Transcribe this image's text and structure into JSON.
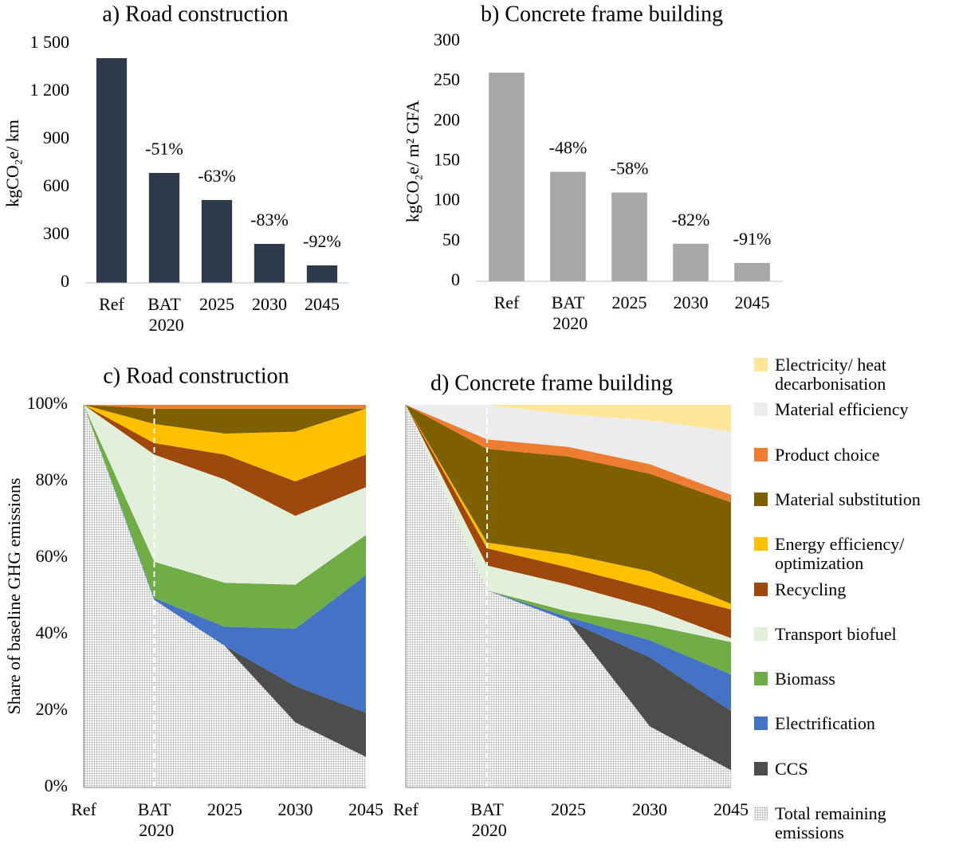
{
  "chart_data": [
    {
      "type": "bar",
      "title": "a) Road construction",
      "y_label": "kgCO₂e/ km",
      "categories": [
        "Ref",
        "BAT 2020",
        "2025",
        "2030",
        "2045"
      ],
      "values": [
        1410,
        690,
        520,
        245,
        110
      ],
      "color": "#2e3a4c",
      "change_labels": [
        null,
        "-51%",
        "-63%",
        "-83%",
        "-92%"
      ],
      "ylim": [
        0,
        1500
      ],
      "yticks": [
        0,
        300,
        600,
        900,
        {
          "value": 1200,
          "label": "1 200"
        },
        {
          "value": 1500,
          "label": "1 500"
        }
      ]
    },
    {
      "type": "bar",
      "title": "b) Concrete frame building",
      "y_label": "kgCO₂e/ m² GFA",
      "categories": [
        "Ref",
        "BAT 2020",
        "2025",
        "2030",
        "2045"
      ],
      "values": [
        261,
        137,
        111,
        47,
        23
      ],
      "color": "#a9a7a6",
      "change_labels": [
        null,
        "-48%",
        "-58%",
        "-82%",
        "-91%"
      ],
      "ylim": [
        0,
        300
      ],
      "yticks": [
        0,
        50,
        100,
        150,
        200,
        250,
        300
      ]
    },
    {
      "type": "stacked_area",
      "title": "c) Road construction",
      "y_label": "Share of baseline GHG emissions",
      "categories": [
        "Ref",
        "BAT 2020",
        "2025",
        "2030",
        "2045"
      ],
      "ylim": [
        0,
        100
      ],
      "yticks": [
        {
          "value": 0,
          "label": "0%"
        },
        {
          "value": 20,
          "label": "20%"
        },
        {
          "value": 40,
          "label": "40%"
        },
        {
          "value": 60,
          "label": "60%"
        },
        {
          "value": 80,
          "label": "80%"
        },
        {
          "value": 100,
          "label": "100%"
        }
      ],
      "series": [
        {
          "name": "Total remaining emissions",
          "color": "#a6a6a6",
          "pattern": "dots",
          "values": [
            100,
            49,
            37,
            17,
            8
          ]
        },
        {
          "name": "CCS",
          "color": "#4d4d4d",
          "values": [
            0,
            0,
            0,
            9.5,
            11.5
          ]
        },
        {
          "name": "Electrification",
          "color": "#4472c4",
          "values": [
            0,
            0.5,
            5,
            15,
            36
          ]
        },
        {
          "name": "Biomass",
          "color": "#70ad47",
          "values": [
            0,
            9.5,
            11.5,
            11.5,
            10.5
          ]
        },
        {
          "name": "Transport biofuel",
          "color": "#e2efda",
          "values": [
            0,
            28,
            27,
            18,
            12.5
          ]
        },
        {
          "name": "Recycling",
          "color": "#9e480e",
          "values": [
            0,
            3,
            6.5,
            9,
            8.5
          ]
        },
        {
          "name": "Energy efficiency/ optimization",
          "color": "#ffc000",
          "values": [
            0,
            5,
            5.5,
            13,
            12
          ]
        },
        {
          "name": "Material substitution",
          "color": "#7f6000",
          "values": [
            0,
            4,
            6.5,
            6,
            0
          ]
        },
        {
          "name": "Product choice",
          "color": "#ed7d31",
          "values": [
            0,
            1,
            1,
            1,
            1
          ]
        },
        {
          "name": "Material efficiency",
          "color": "#ececec",
          "values": [
            0,
            0,
            0,
            0,
            0
          ]
        },
        {
          "name": "Electricity/ heat decarbonisation",
          "color": "#ffe699",
          "values": [
            0,
            0,
            0,
            0,
            0
          ]
        }
      ]
    },
    {
      "type": "stacked_area",
      "title": "d) Concrete frame building",
      "categories": [
        "Ref",
        "BAT 2020",
        "2025",
        "2030",
        "2045"
      ],
      "ylim": [
        0,
        100
      ],
      "series": [
        {
          "name": "Total remaining emissions",
          "color": "#a6a6a6",
          "pattern": "dots",
          "values": [
            100,
            51.5,
            43.5,
            16,
            4.5
          ]
        },
        {
          "name": "CCS",
          "color": "#4d4d4d",
          "values": [
            0,
            0,
            0,
            18,
            15.5
          ]
        },
        {
          "name": "Electrification",
          "color": "#4472c4",
          "values": [
            0,
            0,
            1,
            4.5,
            9.5
          ]
        },
        {
          "name": "Biomass",
          "color": "#70ad47",
          "values": [
            0,
            0,
            1.5,
            4,
            8.5
          ]
        },
        {
          "name": "Transport biofuel",
          "color": "#e2efda",
          "values": [
            0,
            6.5,
            7,
            4.5,
            1
          ]
        },
        {
          "name": "Recycling",
          "color": "#9e480e",
          "values": [
            0,
            4.5,
            4.5,
            5,
            7.5
          ]
        },
        {
          "name": "Energy efficiency/ optimization",
          "color": "#ffc000",
          "values": [
            0,
            1.5,
            3.5,
            4.5,
            1.5
          ]
        },
        {
          "name": "Material substitution",
          "color": "#7f6000",
          "values": [
            0,
            24.5,
            25.5,
            25.5,
            26.5
          ]
        },
        {
          "name": "Product choice",
          "color": "#ed7d31",
          "values": [
            0,
            2.5,
            2.5,
            2.5,
            2
          ]
        },
        {
          "name": "Material efficiency",
          "color": "#ececec",
          "values": [
            0,
            9,
            8.5,
            11.5,
            16.5
          ]
        },
        {
          "name": "Electricity/ heat decarbonisation",
          "color": "#ffe699",
          "values": [
            0,
            0,
            2.5,
            4,
            7
          ]
        }
      ]
    }
  ]
}
